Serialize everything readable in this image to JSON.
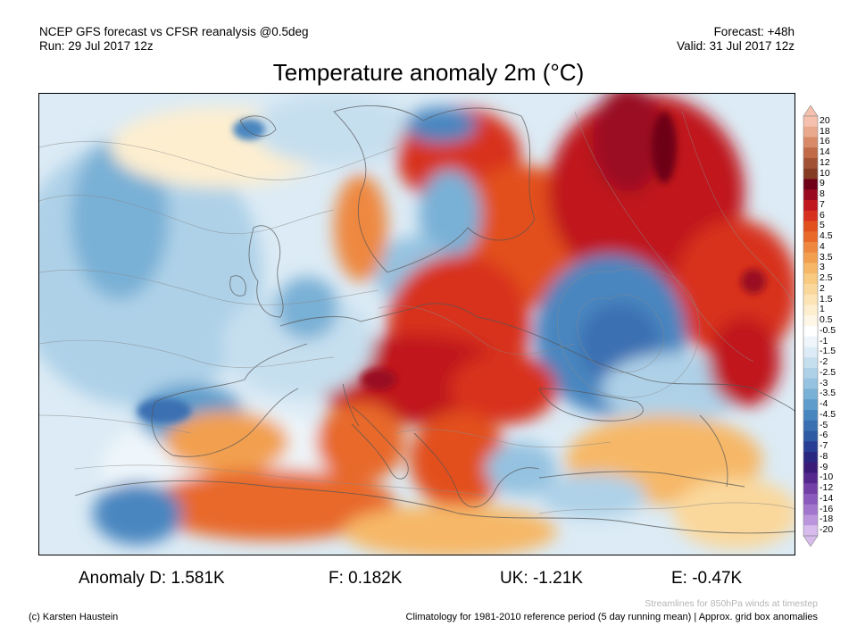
{
  "header": {
    "left_line1": "NCEP GFS forecast vs CFSR reanalysis @0.5deg",
    "left_line2": "Run: 29 Jul 2017 12z",
    "right_line1": "Forecast: +48h",
    "right_line2": "Valid: 31 Jul 2017 12z"
  },
  "title": "Temperature anomaly 2m (°C)",
  "legend": {
    "labels": [
      "20",
      "18",
      "16",
      "14",
      "12",
      "10",
      "9",
      "8",
      "7",
      "6",
      "5",
      "4.5",
      "4",
      "3.5",
      "3",
      "2.5",
      "2",
      "1.5",
      "1",
      "0.5",
      "-0.5",
      "-1",
      "-1.5",
      "-2",
      "-2.5",
      "-3",
      "-3.5",
      "-4",
      "-4.5",
      "-5",
      "-6",
      "-7",
      "-8",
      "-9",
      "-10",
      "-12",
      "-14",
      "-16",
      "-18",
      "-20"
    ],
    "colors": [
      "#f5c0ae",
      "#e9a98c",
      "#d88a68",
      "#c06a48",
      "#a25234",
      "#843c22",
      "#6e0018",
      "#9a0a20",
      "#c0161e",
      "#d8301e",
      "#e2501e",
      "#e8692a",
      "#ee8840",
      "#f2a050",
      "#f6b868",
      "#f8ca82",
      "#fad89c",
      "#fce4b6",
      "#fdeed0",
      "#fef6e6",
      "#ffffff",
      "#eef6fb",
      "#dcebf5",
      "#c6dfef",
      "#aed1e8",
      "#94c2e0",
      "#79b0d6",
      "#5d9ccb",
      "#4886c0",
      "#3a70b2",
      "#2e5aa4",
      "#283e94",
      "#2a2780",
      "#3a1c78",
      "#55288e",
      "#7240a6",
      "#8a5abc",
      "#a276cc",
      "#bc96dc",
      "#d6bbec"
    ]
  },
  "anomalies": [
    {
      "label": "Anomaly D: 1.581K"
    },
    {
      "label": "F: 0.182K"
    },
    {
      "label": "UK: -1.21K"
    },
    {
      "label": "E: -0.47K"
    }
  ],
  "footer": {
    "streamlines_note": "Streamlines for 850hPa winds at timestep",
    "credit": "(c) Karsten Haustein",
    "climatology_note": "Climatology for 1981-2010 reference period (5 day running mean) | Approx. grid box anomalies"
  }
}
